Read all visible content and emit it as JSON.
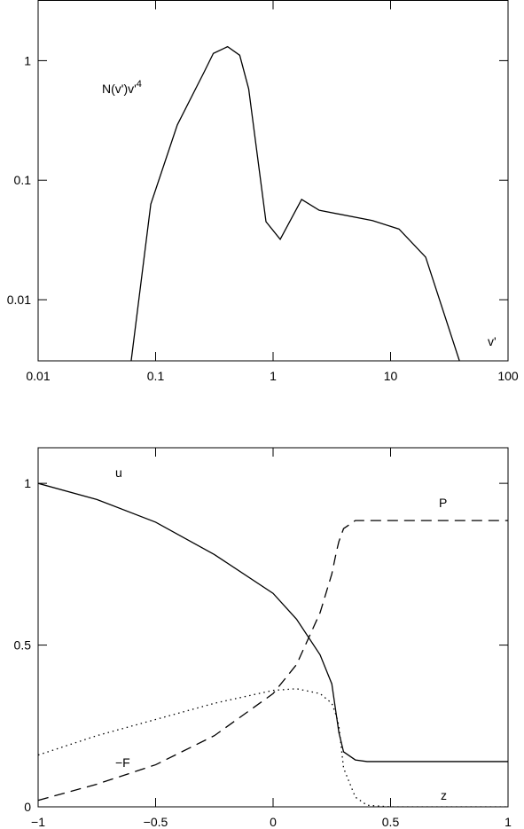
{
  "chart_data": [
    {
      "type": "line",
      "log_x": true,
      "log_y": true,
      "annotation": {
        "text": "N(v')v'",
        "superscript": "4"
      },
      "xlabel": "v'",
      "x": [
        0.062,
        0.091,
        0.153,
        0.26,
        0.31,
        0.41,
        0.52,
        0.62,
        0.87,
        1.15,
        1.75,
        2.47,
        7.0,
        11.8,
        19.9,
        38.5
      ],
      "values": [
        0.0031,
        0.063,
        0.29,
        0.81,
        1.15,
        1.31,
        1.11,
        0.58,
        0.045,
        0.032,
        0.069,
        0.056,
        0.046,
        0.039,
        0.0227,
        0.0031
      ],
      "color": "#000000",
      "xlim": [
        0.01,
        100
      ],
      "xticks": [
        0.01,
        0.1,
        1,
        10,
        100
      ],
      "ylim": [
        0.00308,
        3.19
      ],
      "yticks": [
        0.01,
        0.1,
        1
      ]
    },
    {
      "type": "line",
      "log_x": false,
      "log_y": false,
      "x": [
        -1,
        -0.75,
        -0.5,
        -0.25,
        0,
        0.1,
        0.2,
        0.25,
        0.27,
        0.28,
        0.3,
        0.35,
        0.4,
        0.5,
        1
      ],
      "series": [
        {
          "name": "u",
          "color": "#000000",
          "dash": "solid",
          "values": [
            1.0,
            0.95,
            0.88,
            0.78,
            0.66,
            0.58,
            0.47,
            0.38,
            0.28,
            0.23,
            0.17,
            0.145,
            0.14,
            0.14,
            0.14
          ]
        },
        {
          "name": "P",
          "color": "#000000",
          "dash": "dashed",
          "values": [
            0.02,
            0.07,
            0.13,
            0.22,
            0.35,
            0.44,
            0.6,
            0.72,
            0.79,
            0.82,
            0.86,
            0.885,
            0.885,
            0.885,
            0.885
          ]
        },
        {
          "name": "−F",
          "color": "#000000",
          "dash": "dotted",
          "values": [
            0.16,
            0.22,
            0.27,
            0.32,
            0.36,
            0.365,
            0.35,
            0.32,
            0.28,
            0.25,
            0.12,
            0.03,
            0.005,
            0,
            0
          ]
        }
      ],
      "annotation": "z",
      "xlim": [
        -1,
        1
      ],
      "xticks": [
        {
          "value": -1,
          "label": "−1"
        },
        {
          "value": -0.5,
          "label": "−0.5"
        },
        0,
        0.5,
        1
      ],
      "ylim": [
        0,
        1.11
      ],
      "yticks": [
        0,
        0.5,
        1
      ]
    }
  ]
}
